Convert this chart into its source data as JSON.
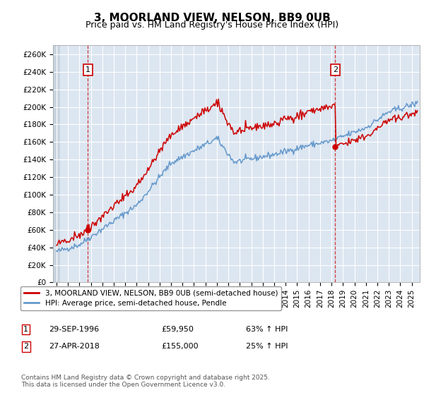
{
  "title": "3, MOORLAND VIEW, NELSON, BB9 0UB",
  "subtitle": "Price paid vs. HM Land Registry's House Price Index (HPI)",
  "ylim": [
    0,
    270000
  ],
  "yticks": [
    0,
    20000,
    40000,
    60000,
    80000,
    100000,
    120000,
    140000,
    160000,
    180000,
    200000,
    220000,
    240000,
    260000
  ],
  "xlim_start": 1993.7,
  "xlim_end": 2025.7,
  "plot_bg": "#dce6f1",
  "grid_color": "#ffffff",
  "red_line_color": "#cc0000",
  "blue_line_color": "#6699cc",
  "transaction1_date": 1996.75,
  "transaction1_price": 59950,
  "transaction2_date": 2018.33,
  "transaction2_price": 155000,
  "legend_label_red": "3, MOORLAND VIEW, NELSON, BB9 0UB (semi-detached house)",
  "legend_label_blue": "HPI: Average price, semi-detached house, Pendle",
  "annotation1_date": "29-SEP-1996",
  "annotation1_price": "£59,950",
  "annotation1_hpi": "63% ↑ HPI",
  "annotation2_date": "27-APR-2018",
  "annotation2_price": "£155,000",
  "annotation2_hpi": "25% ↑ HPI",
  "footer": "Contains HM Land Registry data © Crown copyright and database right 2025.\nThis data is licensed under the Open Government Licence v3.0.",
  "title_fontsize": 11,
  "subtitle_fontsize": 9,
  "tick_fontsize": 7.5
}
